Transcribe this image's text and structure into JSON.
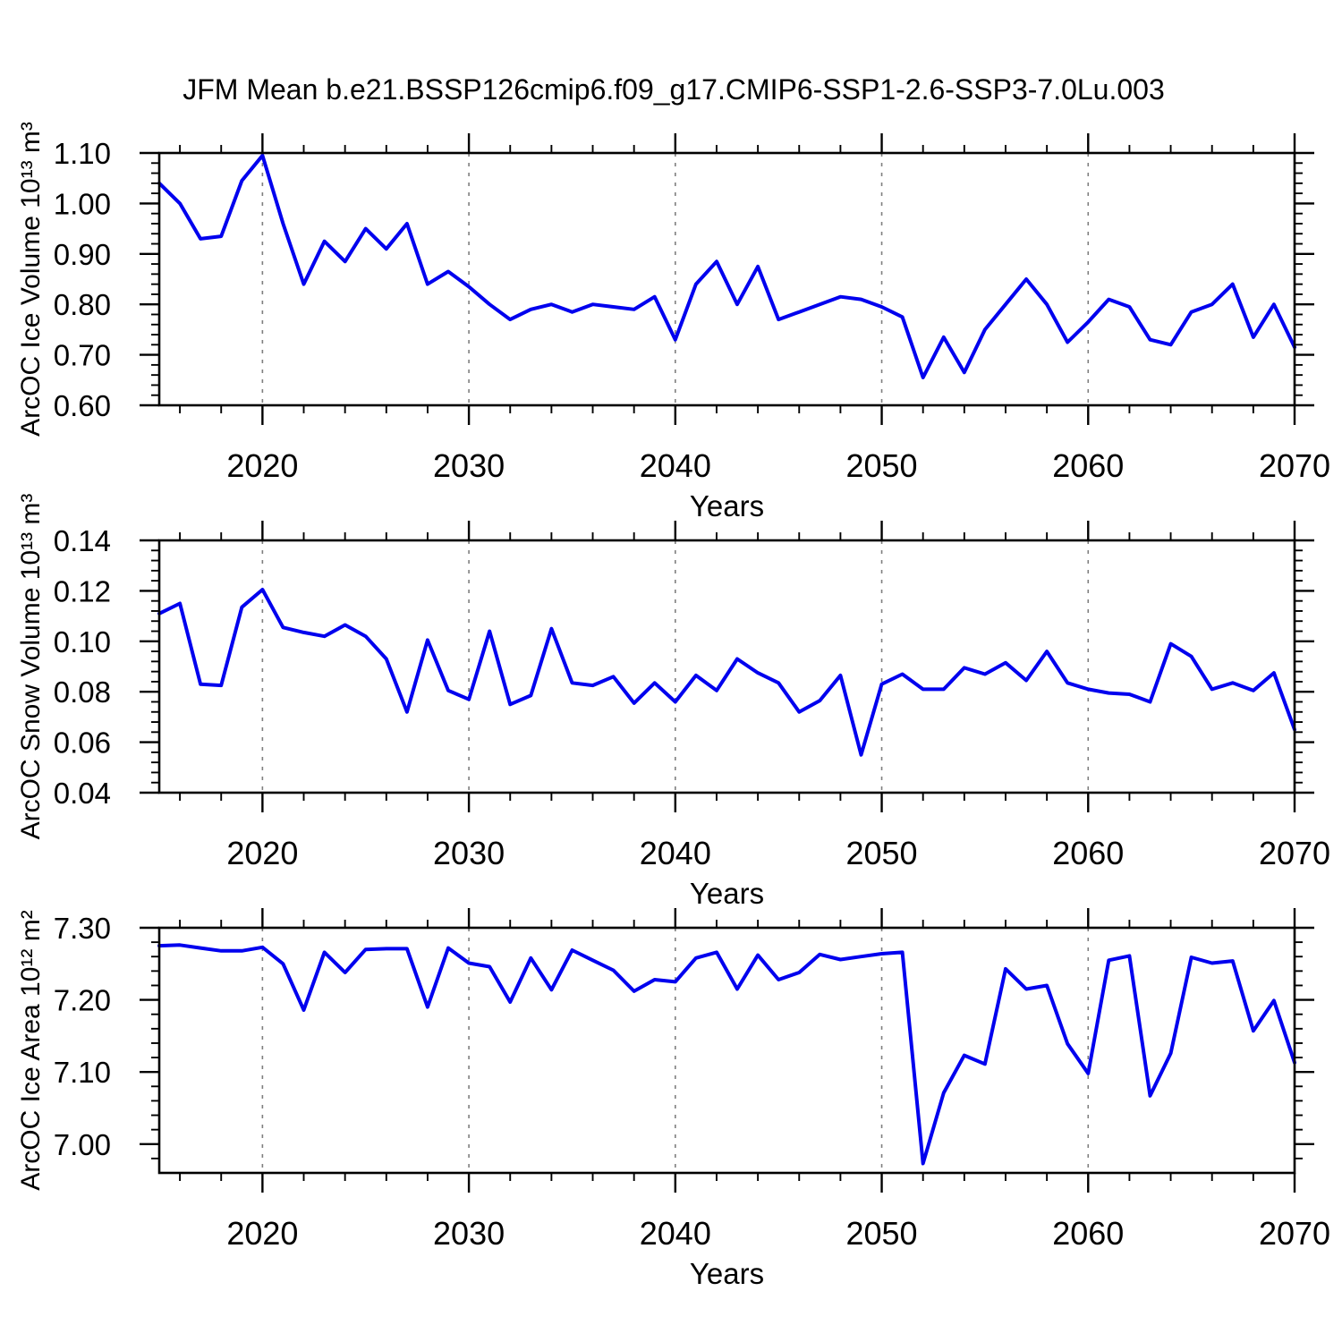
{
  "title": "JFM Mean b.e21.BSSP126cmip6.f09_g17.CMIP6-SSP1-2.6-SSP3-7.0Lu.003",
  "colors": {
    "line": "#0000ee",
    "frame": "#000000",
    "gridline": "#7f7f7f",
    "background": "#ffffff",
    "text": "#000000"
  },
  "years": [
    2015,
    2016,
    2017,
    2018,
    2019,
    2020,
    2021,
    2022,
    2023,
    2024,
    2025,
    2026,
    2027,
    2028,
    2029,
    2030,
    2031,
    2032,
    2033,
    2034,
    2035,
    2036,
    2037,
    2038,
    2039,
    2040,
    2041,
    2042,
    2043,
    2044,
    2045,
    2046,
    2047,
    2048,
    2049,
    2050,
    2051,
    2052,
    2053,
    2054,
    2055,
    2056,
    2057,
    2058,
    2059,
    2060,
    2061,
    2062,
    2063,
    2064,
    2065,
    2066,
    2067,
    2068,
    2069,
    2070
  ],
  "x_axis": {
    "title": "Years",
    "min": 2015,
    "max": 2070,
    "major_ticks": [
      2020,
      2030,
      2040,
      2050,
      2060,
      2070
    ],
    "major_tick_labels": [
      "2020",
      "2030",
      "2040",
      "2050",
      "2060",
      "2070"
    ],
    "minor_step": 2,
    "grid_years": [
      2020,
      2030,
      2040,
      2050,
      2060
    ],
    "grid_on": true
  },
  "chart_data": [
    {
      "type": "line",
      "name": "ice-volume",
      "title": "",
      "xlabel": "Years",
      "ylabel": "ArcOC Ice Volume 10¹³ m³",
      "ylim": [
        0.6,
        1.1
      ],
      "yticks": [
        0.6,
        0.7,
        0.8,
        0.9,
        1.0,
        1.1
      ],
      "ytick_labels": [
        "0.60",
        "0.70",
        "0.80",
        "0.90",
        "1.00",
        "1.10"
      ],
      "y_minor_step": 0.02,
      "legend": "none",
      "values": [
        1.04,
        1.0,
        0.93,
        0.935,
        1.045,
        1.095,
        0.96,
        0.84,
        0.925,
        0.885,
        0.95,
        0.91,
        0.96,
        0.84,
        0.865,
        0.835,
        0.8,
        0.77,
        0.79,
        0.8,
        0.785,
        0.8,
        0.795,
        0.79,
        0.815,
        0.73,
        0.84,
        0.885,
        0.8,
        0.875,
        0.77,
        0.785,
        0.8,
        0.815,
        0.81,
        0.795,
        0.775,
        0.655,
        0.735,
        0.665,
        0.75,
        0.8,
        0.85,
        0.8,
        0.725,
        0.765,
        0.81,
        0.795,
        0.73,
        0.72,
        0.785,
        0.8,
        0.84,
        0.735,
        0.8,
        0.715
      ]
    },
    {
      "type": "line",
      "name": "snow-volume",
      "title": "",
      "xlabel": "Years",
      "ylabel": "ArcOC Snow Volume 10¹³ m³",
      "ylim": [
        0.04,
        0.14
      ],
      "yticks": [
        0.04,
        0.06,
        0.08,
        0.1,
        0.12,
        0.14
      ],
      "ytick_labels": [
        "0.04",
        "0.06",
        "0.08",
        "0.10",
        "0.12",
        "0.14"
      ],
      "y_minor_step": 0.004,
      "legend": "none",
      "values": [
        0.111,
        0.115,
        0.083,
        0.0825,
        0.1135,
        0.1205,
        0.1055,
        0.1035,
        0.102,
        0.1065,
        0.102,
        0.093,
        0.072,
        0.1005,
        0.0805,
        0.077,
        0.104,
        0.075,
        0.0785,
        0.105,
        0.0835,
        0.0825,
        0.086,
        0.0755,
        0.0835,
        0.076,
        0.0865,
        0.0805,
        0.093,
        0.0875,
        0.0835,
        0.072,
        0.0765,
        0.0865,
        0.055,
        0.083,
        0.087,
        0.081,
        0.081,
        0.0895,
        0.087,
        0.0915,
        0.0845,
        0.096,
        0.0835,
        0.081,
        0.0795,
        0.079,
        0.076,
        0.099,
        0.094,
        0.081,
        0.0835,
        0.0805,
        0.0875,
        0.065
      ]
    },
    {
      "type": "line",
      "name": "ice-area",
      "title": "",
      "xlabel": "Years",
      "ylabel": "ArcOC Ice Area 10¹² m²",
      "ylim": [
        6.96,
        7.3
      ],
      "yticks": [
        7.0,
        7.1,
        7.2,
        7.3
      ],
      "ytick_labels": [
        "7.00",
        "7.10",
        "7.20",
        "7.30"
      ],
      "y_minor_step": 0.02,
      "legend": "none",
      "values": [
        7.275,
        7.276,
        7.272,
        7.268,
        7.268,
        7.273,
        7.25,
        7.186,
        7.266,
        7.238,
        7.27,
        7.271,
        7.271,
        7.19,
        7.272,
        7.251,
        7.246,
        7.197,
        7.258,
        7.214,
        7.269,
        7.255,
        7.241,
        7.212,
        7.228,
        7.225,
        7.258,
        7.266,
        7.215,
        7.262,
        7.228,
        7.238,
        7.263,
        7.256,
        7.26,
        7.264,
        7.266,
        6.973,
        7.071,
        7.123,
        7.111,
        7.243,
        7.215,
        7.22,
        7.139,
        7.098,
        7.255,
        7.261,
        7.067,
        7.126,
        7.259,
        7.251,
        7.254,
        7.157,
        7.199,
        7.113
      ]
    }
  ]
}
